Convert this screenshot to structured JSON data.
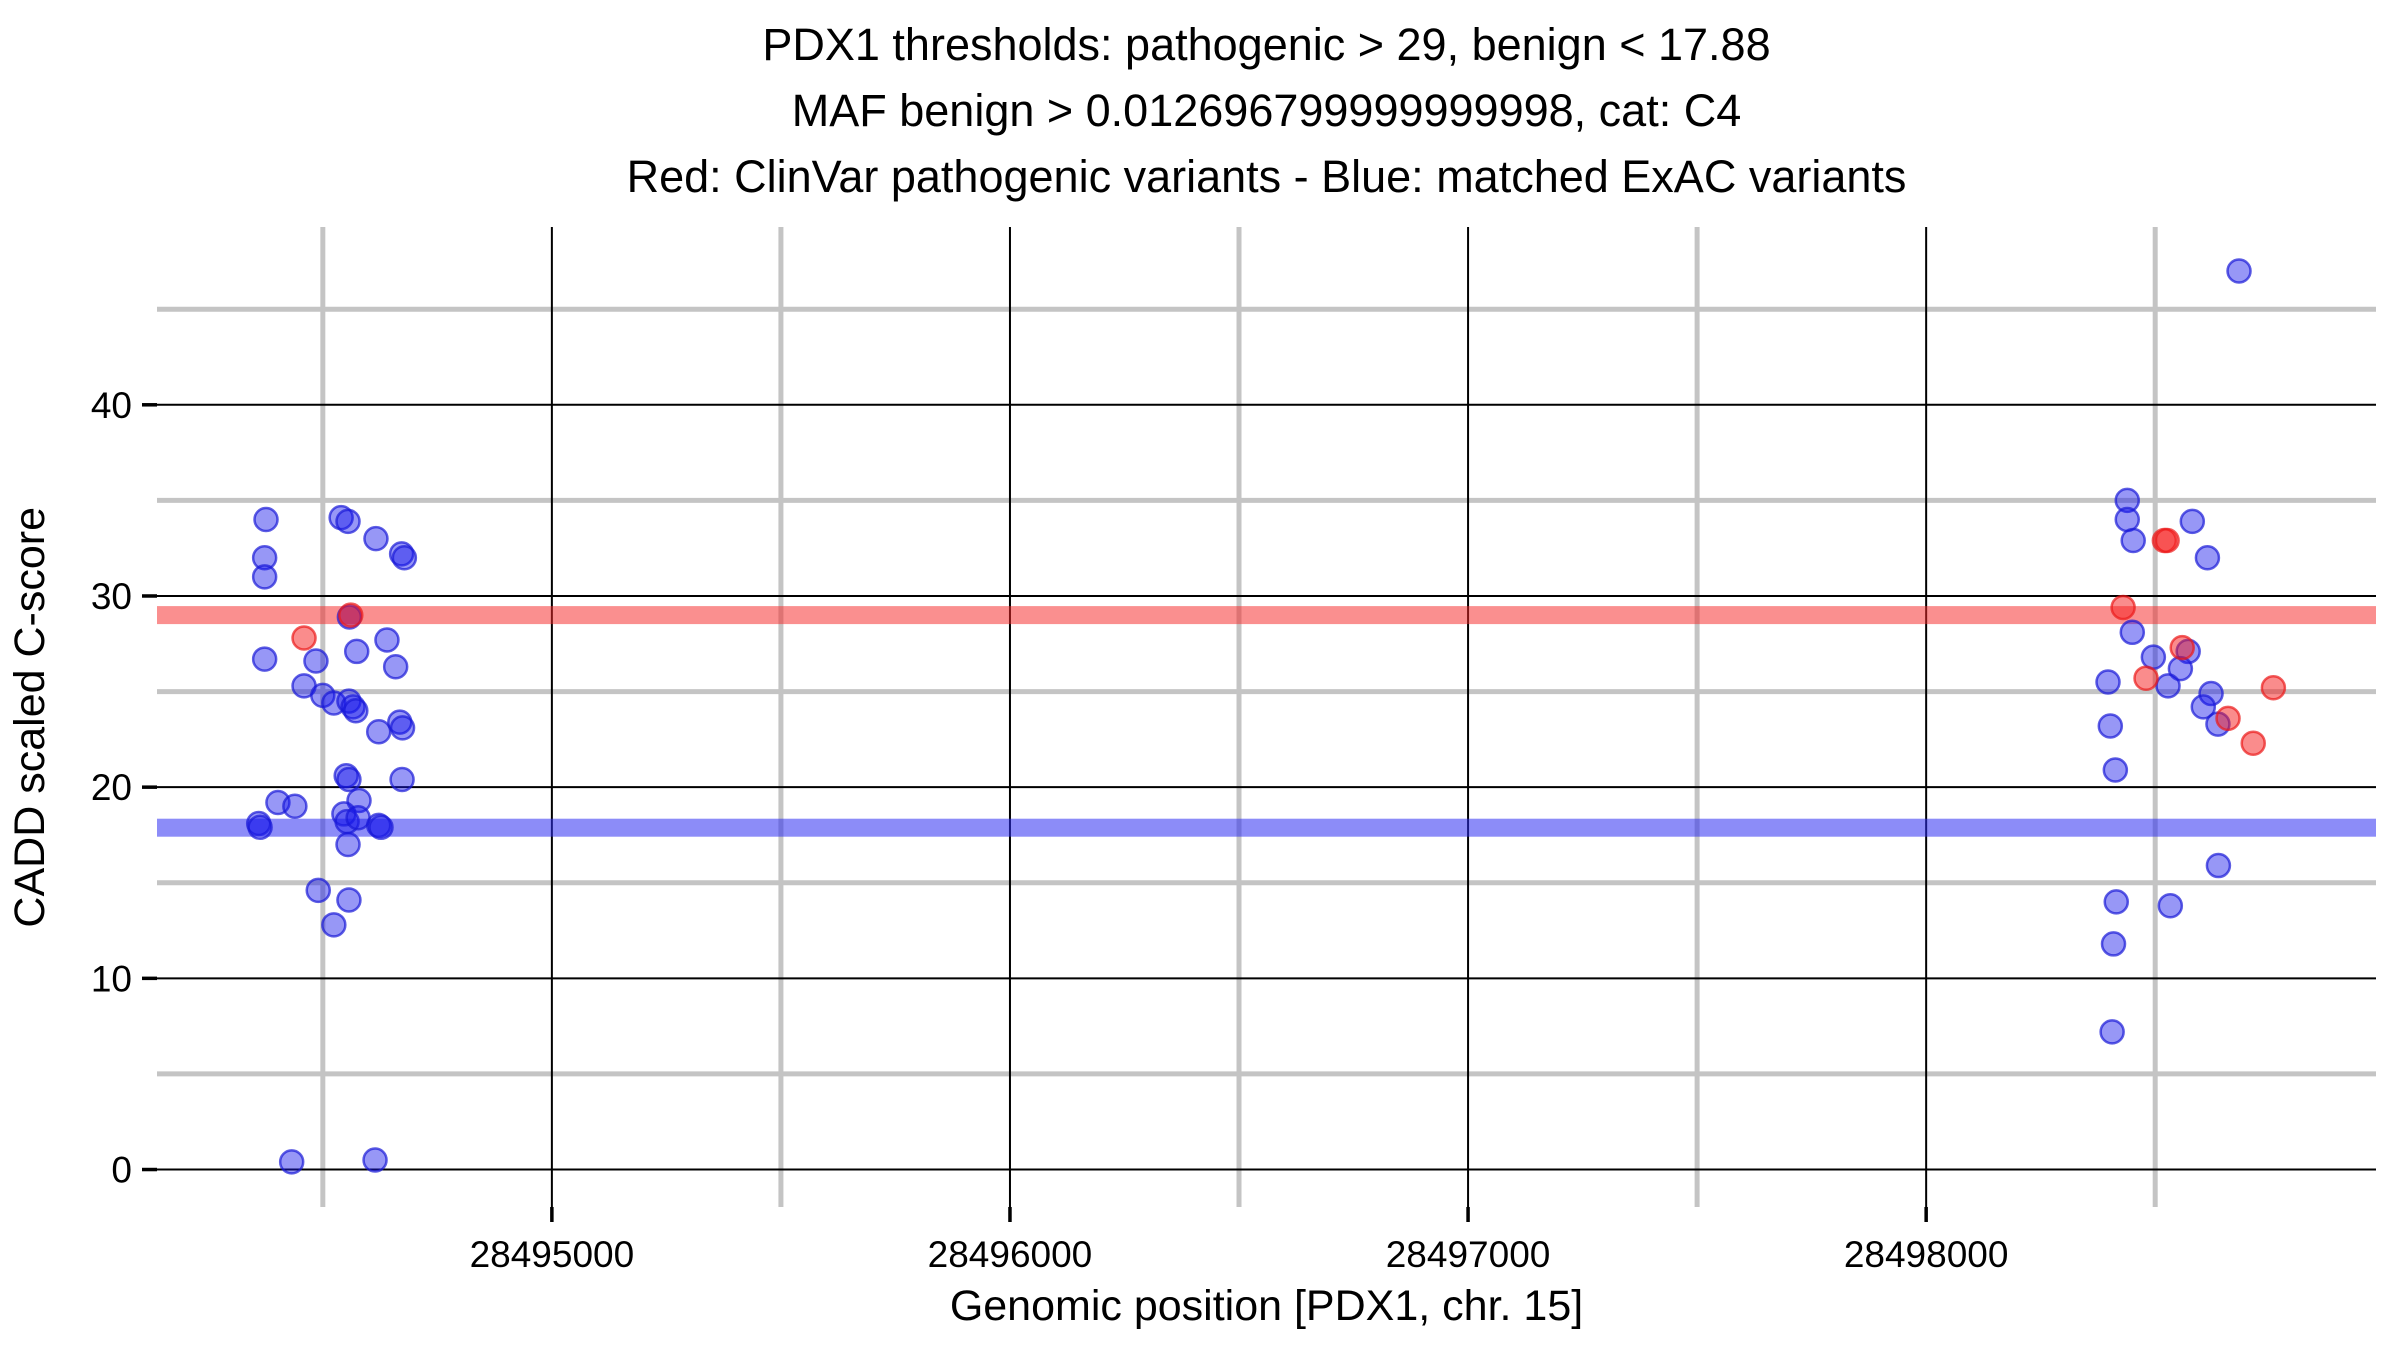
{
  "title": {
    "lines": [
      "PDX1 thresholds: pathogenic > 29, benign < 17.88",
      "MAF benign > 0.012696799999999998, cat: C4",
      "Red: ClinVar pathogenic variants - Blue: matched ExAC variants"
    ]
  },
  "chart_data": {
    "type": "scatter",
    "title": "PDX1 thresholds: pathogenic > 29, benign < 17.88\nMAF benign > 0.012696799999999998, cat: C4\nRed: ClinVar pathogenic variants - Blue: matched ExAC variants",
    "xlabel": "Genomic position [PDX1, chr. 15]",
    "ylabel": "CADD scaled C-score",
    "xlim": [
      28494138,
      28498982
    ],
    "ylim": [
      -1.96,
      49.3
    ],
    "x_ticks": [
      28495000,
      28496000,
      28497000,
      28498000
    ],
    "x_tick_labels": [
      "28495000",
      "28496000",
      "28497000",
      "28498000"
    ],
    "x_minor_gridlines": [
      28494500,
      28495500,
      28496500,
      28497500,
      28498500
    ],
    "y_ticks": [
      0,
      10,
      20,
      30,
      40
    ],
    "y_tick_labels": [
      "0",
      "10",
      "20",
      "30",
      "40"
    ],
    "y_minor_gridlines": [
      5,
      15,
      25,
      35,
      45
    ],
    "grid": true,
    "legend_position": "none",
    "thresholds": [
      {
        "name": "pathogenic",
        "value": 29,
        "color": "#F98989"
      },
      {
        "name": "benign",
        "value": 17.88,
        "color": "#8989F9"
      }
    ],
    "series": [
      {
        "name": "matched ExAC variants",
        "color_fill": "rgba(25,25,235,0.45)",
        "color_stroke": "rgba(25,25,215,0.70)",
        "points": [
          [
            28494376,
            34.0
          ],
          [
            28494540,
            34.1
          ],
          [
            28494555,
            33.9
          ],
          [
            28494616,
            33.0
          ],
          [
            28494672,
            32.2
          ],
          [
            28494678,
            32.0
          ],
          [
            28494373,
            32.0
          ],
          [
            28494373,
            31.0
          ],
          [
            28494558,
            28.9
          ],
          [
            28494640,
            27.7
          ],
          [
            28494574,
            27.1
          ],
          [
            28494373,
            26.7
          ],
          [
            28494485,
            26.6
          ],
          [
            28494659,
            26.3
          ],
          [
            28494459,
            25.3
          ],
          [
            28494500,
            24.8
          ],
          [
            28494524,
            24.4
          ],
          [
            28494557,
            24.5
          ],
          [
            28494566,
            24.2
          ],
          [
            28494572,
            24.0
          ],
          [
            28494622,
            22.9
          ],
          [
            28494668,
            23.4
          ],
          [
            28494674,
            23.1
          ],
          [
            28494551,
            20.6
          ],
          [
            28494557,
            20.4
          ],
          [
            28494673,
            20.4
          ],
          [
            28494402,
            19.2
          ],
          [
            28494439,
            19.0
          ],
          [
            28494579,
            19.3
          ],
          [
            28494546,
            18.6
          ],
          [
            28494360,
            18.1
          ],
          [
            28494363,
            17.9
          ],
          [
            28494553,
            18.2
          ],
          [
            28494577,
            18.4
          ],
          [
            28494622,
            18.0
          ],
          [
            28494627,
            17.9
          ],
          [
            28494555,
            17.0
          ],
          [
            28494490,
            14.6
          ],
          [
            28494557,
            14.1
          ],
          [
            28494524,
            12.8
          ],
          [
            28494432,
            0.4
          ],
          [
            28494614,
            0.5
          ],
          [
            28498683,
            47.0
          ],
          [
            28498439,
            35.0
          ],
          [
            28498439,
            34.0
          ],
          [
            28498452,
            32.9
          ],
          [
            28498581,
            33.9
          ],
          [
            28498614,
            32.0
          ],
          [
            28498450,
            28.1
          ],
          [
            28498572,
            27.1
          ],
          [
            28498496,
            26.8
          ],
          [
            28498555,
            26.2
          ],
          [
            28498397,
            25.5
          ],
          [
            28498528,
            25.3
          ],
          [
            28498622,
            24.9
          ],
          [
            28498605,
            24.2
          ],
          [
            28498637,
            23.3
          ],
          [
            28498402,
            23.2
          ],
          [
            28498413,
            20.9
          ],
          [
            28498638,
            15.9
          ],
          [
            28498415,
            14.0
          ],
          [
            28498533,
            13.8
          ],
          [
            28498409,
            11.8
          ],
          [
            28498406,
            7.2
          ]
        ]
      },
      {
        "name": "ClinVar pathogenic variants",
        "color_fill": "rgba(245,25,25,0.50)",
        "color_stroke": "rgba(235,25,25,0.70)",
        "points": [
          [
            28494561,
            29.0
          ],
          [
            28494459,
            27.8
          ],
          [
            28498430,
            29.4
          ],
          [
            28498520,
            32.9
          ],
          [
            28498526,
            32.9
          ],
          [
            28498559,
            27.3
          ],
          [
            28498480,
            25.7
          ],
          [
            28498758,
            25.2
          ],
          [
            28498659,
            23.6
          ],
          [
            28498714,
            22.3
          ]
        ]
      }
    ],
    "colors": {
      "band_pathogenic": "rgba(246,40,40,0.52)",
      "band_benign": "rgba(45,45,242,0.55)",
      "grid_major": "#000000",
      "grid_minor": "#C4C4C4",
      "tick": "#000000"
    }
  }
}
